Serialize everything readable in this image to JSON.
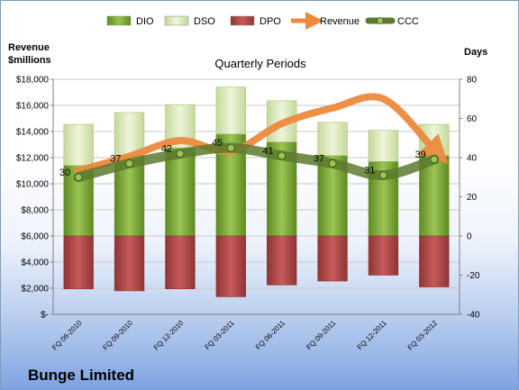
{
  "chart_data": {
    "type": "bar",
    "title": "Quarterly Periods",
    "company": "Bunge Limited",
    "left_axis_title": "Revenue\n$millions",
    "right_axis_title": "Days",
    "categories": [
      "FQ 06-2010",
      "FQ 09-2010",
      "FQ 12-2010",
      "FQ 03-2011",
      "FQ 06-2011",
      "FQ 09-2011",
      "FQ 12-2011",
      "FQ 03-2012"
    ],
    "left_ticks": [
      "$18,000",
      "$16,000",
      "$14,000",
      "$12,000",
      "$10,000",
      "$8,000",
      "$6,000",
      "$4,000",
      "$2,000",
      "$-"
    ],
    "right_ticks": [
      "80",
      "60",
      "40",
      "20",
      "0",
      "-20",
      "-40"
    ],
    "ylim_left": [
      0,
      18000
    ],
    "ylim_right": [
      -40,
      80
    ],
    "legend_position": "top",
    "series": [
      {
        "name": "DIO",
        "kind": "bar-stacked",
        "axis": "right",
        "color": "#7aa336",
        "values": [
          36,
          41,
          45,
          52,
          48,
          41,
          38,
          41
        ]
      },
      {
        "name": "DSO",
        "kind": "bar-stacked",
        "axis": "right",
        "color": "#d7e6b0",
        "values": [
          21,
          22,
          22,
          24,
          21,
          17,
          16,
          16
        ]
      },
      {
        "name": "DPO",
        "kind": "bar-negative",
        "axis": "right",
        "color": "#b04848",
        "values": [
          -27,
          -28,
          -27,
          -31,
          -25,
          -23,
          -20,
          -26
        ]
      },
      {
        "name": "Revenue",
        "kind": "line",
        "axis": "left",
        "color": "#ec8b3f",
        "values": [
          11000,
          12100,
          13300,
          12500,
          14600,
          15800,
          16500,
          12600
        ]
      },
      {
        "name": "CCC",
        "kind": "line-markers",
        "axis": "right",
        "color": "#5c7a2e",
        "values": [
          30,
          37,
          42,
          45,
          41,
          37,
          31,
          39
        ]
      }
    ],
    "data_labels": [
      "30",
      "37",
      "42",
      "45",
      "41",
      "37",
      "31",
      "39"
    ]
  }
}
